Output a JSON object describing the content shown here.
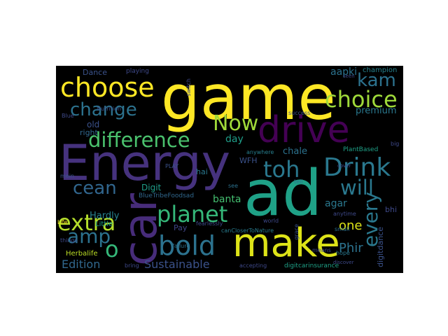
{
  "background_color": "#000000",
  "words": [
    {
      "text": "game",
      "color": "#fde725"
    },
    {
      "text": "ad",
      "color": "#1fa187"
    },
    {
      "text": "Energy",
      "color": "#46327e"
    },
    {
      "text": "drive",
      "color": "#440154"
    },
    {
      "text": "make",
      "color": "#dde318"
    },
    {
      "text": "car",
      "color": "#472c7a"
    },
    {
      "text": "choose",
      "color": "#fde725"
    },
    {
      "text": "Drink",
      "color": "#2a788e"
    },
    {
      "text": "planet",
      "color": "#35b779"
    },
    {
      "text": "bold",
      "color": "#2c728e"
    },
    {
      "text": "difference",
      "color": "#4ac16d"
    },
    {
      "text": "change",
      "color": "#2c728e"
    },
    {
      "text": "choice",
      "color": "#9fda3a"
    },
    {
      "text": "kam",
      "color": "#2c728e"
    },
    {
      "text": "Now",
      "color": "#a0da39"
    },
    {
      "text": "toh",
      "color": "#2a788e"
    },
    {
      "text": "will",
      "color": "#2a788e"
    },
    {
      "text": "cean",
      "color": "#31668e"
    },
    {
      "text": "extra",
      "color": "#b5de2b"
    },
    {
      "text": "amp",
      "color": "#2c728e"
    },
    {
      "text": "o",
      "color": "#35b779"
    },
    {
      "text": "every",
      "color": "#2a788e"
    },
    {
      "text": "one",
      "color": "#dde318"
    },
    {
      "text": "Sustainable",
      "color": "#3b528b"
    },
    {
      "text": "Edition",
      "color": "#31688e"
    },
    {
      "text": "Phir",
      "color": "#2c728e"
    },
    {
      "text": "Dance",
      "color": "#3b528b"
    },
    {
      "text": "playing",
      "color": "#3e4989"
    },
    {
      "text": "aapki",
      "color": "#2c728e"
    },
    {
      "text": "champion",
      "color": "#26828e"
    },
    {
      "text": "premium",
      "color": "#2a788e"
    },
    {
      "text": "old",
      "color": "#3b528b"
    },
    {
      "text": "right",
      "color": "#31688e"
    },
    {
      "text": "day",
      "color": "#1f9e89"
    },
    {
      "text": "chale",
      "color": "#2c728e"
    },
    {
      "text": "agar",
      "color": "#2a788e"
    },
    {
      "text": "bhi",
      "color": "#3e4989"
    },
    {
      "text": "Digit",
      "color": "#1f9e89"
    },
    {
      "text": "banta",
      "color": "#44bf70"
    },
    {
      "text": "Hardly",
      "color": "#26828e"
    },
    {
      "text": "WFH",
      "color": "#3b528b"
    },
    {
      "text": "hai",
      "color": "#2a788e"
    },
    {
      "text": "Pay",
      "color": "#404688"
    },
    {
      "text": "Little",
      "color": "#1f9e89"
    },
    {
      "text": "Herbalife",
      "color": "#bddf26"
    },
    {
      "text": "digitdance",
      "color": "#3b528b"
    },
    {
      "text": "PlantBased",
      "color": "#1fa187"
    },
    {
      "text": "BlueTribeFoodsad",
      "color": "#31688e"
    },
    {
      "text": "digitcarinsurance",
      "color": "#1fa187"
    },
    {
      "text": "canCloserToNature",
      "color": "#287c8e"
    },
    {
      "text": "fearlessly",
      "color": "#3e4989"
    },
    {
      "text": "success",
      "color": "#3b528b"
    },
    {
      "text": "anywhere",
      "color": "#277f8e"
    },
    {
      "text": "world",
      "color": "#3e4989"
    },
    {
      "text": "Nutrition",
      "color": "#3b528b"
    },
    {
      "text": "Blue",
      "color": "#3e4989"
    },
    {
      "text": "switch",
      "color": "#3e4989"
    },
    {
      "text": "PLAY",
      "color": "#3b528b"
    },
    {
      "text": "mein",
      "color": "#3b528b"
    },
    {
      "text": "failure",
      "color": "#2c728e"
    },
    {
      "text": "small",
      "color": "#2c728e"
    },
    {
      "text": "anytime",
      "color": "#3e4989"
    },
    {
      "text": "grace",
      "color": "#3b528b"
    },
    {
      "text": "means",
      "color": "#3e4989"
    },
    {
      "text": "things",
      "color": "#3e4989"
    },
    {
      "text": "bring",
      "color": "#3e4989"
    },
    {
      "text": "accepting",
      "color": "#3e4989"
    },
    {
      "text": "hope",
      "color": "#2a788e"
    },
    {
      "text": "seen",
      "color": "#3e4989"
    },
    {
      "text": "tell",
      "color": "#2c728e"
    },
    {
      "text": "see",
      "color": "#2c728e"
    },
    {
      "text": "Life",
      "color": "#fde725"
    },
    {
      "text": "big",
      "color": "#3e4989"
    },
    {
      "text": "cover",
      "color": "#3e4989"
    },
    {
      "text": "discover",
      "color": "#3e4989"
    }
  ]
}
